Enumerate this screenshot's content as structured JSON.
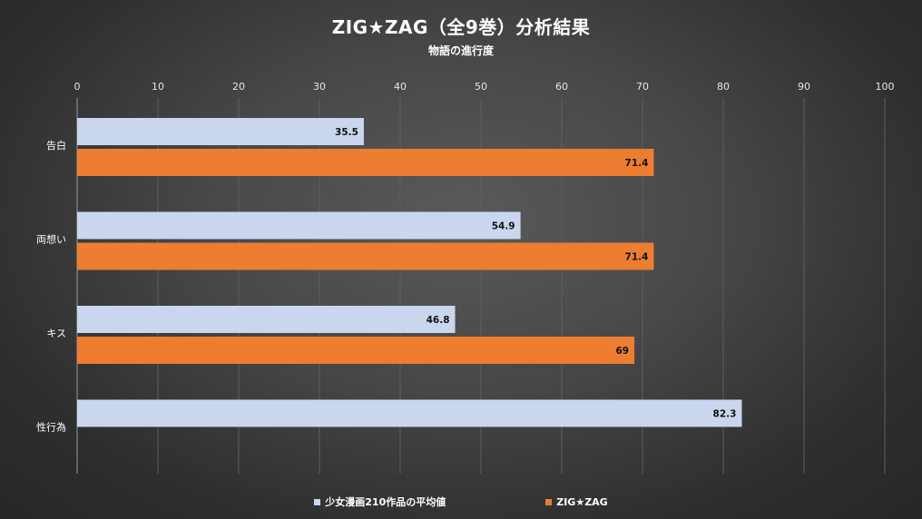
{
  "title": "ZIG★ZAG（全9巻）分析結果",
  "subtitle": "物語の進行度",
  "chart_data": {
    "type": "bar",
    "orientation": "horizontal",
    "categories": [
      "告白",
      "両想い",
      "キス",
      "性行為"
    ],
    "series": [
      {
        "name": "少女漫画210作品の平均値",
        "color": "#c9d6ee",
        "values": [
          35.5,
          54.9,
          46.8,
          82.3
        ],
        "labels": [
          "35.5",
          "54.9",
          "46.8",
          "82.3"
        ]
      },
      {
        "name": "ZIG★ZAG",
        "color": "#ed7d31",
        "values": [
          71.4,
          71.4,
          69,
          null
        ],
        "labels": [
          "71.4",
          "71.4",
          "69",
          ""
        ]
      }
    ],
    "xlim": [
      0,
      100
    ],
    "xticks": [
      0,
      10,
      20,
      30,
      40,
      50,
      60,
      70,
      80,
      90,
      100
    ],
    "x_axis_position": "top",
    "grid": true,
    "legend_position": "bottom"
  }
}
